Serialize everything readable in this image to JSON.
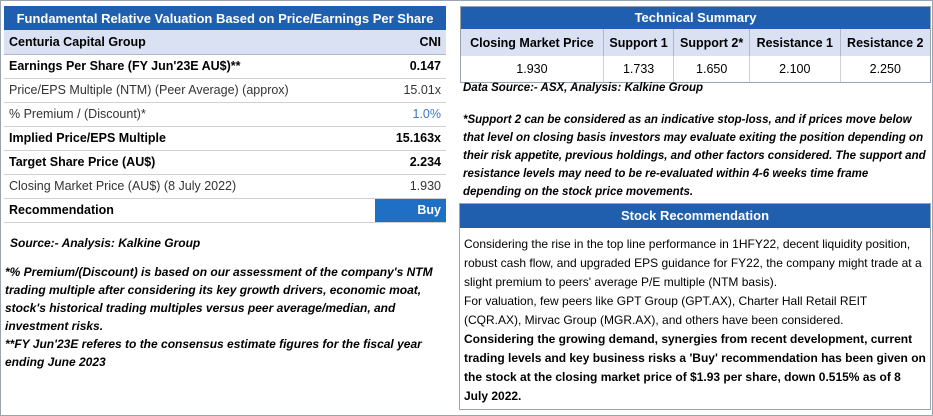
{
  "valuation": {
    "title": "Fundamental Relative Valuation Based on Price/Earnings Per Share",
    "company": "Centuria Capital Group",
    "ticker": "CNI",
    "rows": [
      {
        "label": "Earnings Per Share (FY Jun'23E AU$)**",
        "value": "0.147"
      },
      {
        "label": "Price/EPS Multiple (NTM) (Peer Average) (approx)",
        "value": "15.01x"
      },
      {
        "label": "% Premium / (Discount)*",
        "value": "1.0%"
      },
      {
        "label": "Implied Price/EPS Multiple",
        "value": "15.163x"
      },
      {
        "label": "Target Share Price (AU$)",
        "value": "2.234"
      },
      {
        "label": "Closing Market Price (AU$) (8 July 2022)",
        "value": "1.930"
      }
    ],
    "recommendation_label": "Recommendation",
    "recommendation_value": "Buy",
    "source": "Source:- Analysis: Kalkine Group",
    "note1": "*% Premium/(Discount) is based on our assessment of the company's NTM trading multiple after considering its key growth drivers, economic moat, stock's historical trading multiples versus peer average/median, and investment risks.",
    "note2": "**FY Jun'23E referes to the consensus estimate figures for the fiscal year ending June 2023"
  },
  "technical": {
    "title": "Technical Summary",
    "headers": [
      "Closing Market Price",
      "Support 1",
      "Support 2*",
      "Resistance 1",
      "Resistance 2"
    ],
    "values": [
      "1.930",
      "1.733",
      "1.650",
      "2.100",
      "2.250"
    ],
    "source": "Data Source:- ASX, Analysis: Kalkine Group",
    "note": "*Support 2 can be considered as an indicative stop-loss, and if prices move below that level on closing basis investors may evaluate exiting the position depending on their risk appetite, previous holdings, and other factors considered. The support and resistance levels may need to be re-evaluated within 4-6 weeks time frame depending on the stock price movements."
  },
  "stock_recommendation": {
    "title": "Stock Recommendation",
    "para1": "Considering the rise in the top line performance in 1HFY22, decent liquidity position, robust cash flow, and upgraded EPS guidance for FY22, the company might trade at a slight premium to peers' average P/E multiple (NTM basis).",
    "para2": "For valuation, few peers like GPT Group (GPT.AX), Charter Hall Retail REIT (CQR.AX), Mirvac Group (MGR.AX), and others have been considered.",
    "para3": "Considering the growing demand, synergies from recent development, current trading levels and key business risks a 'Buy' recommendation has been given on the stock at the closing market price of $1.93 per share, down 0.515% as of 8 July 2022."
  }
}
